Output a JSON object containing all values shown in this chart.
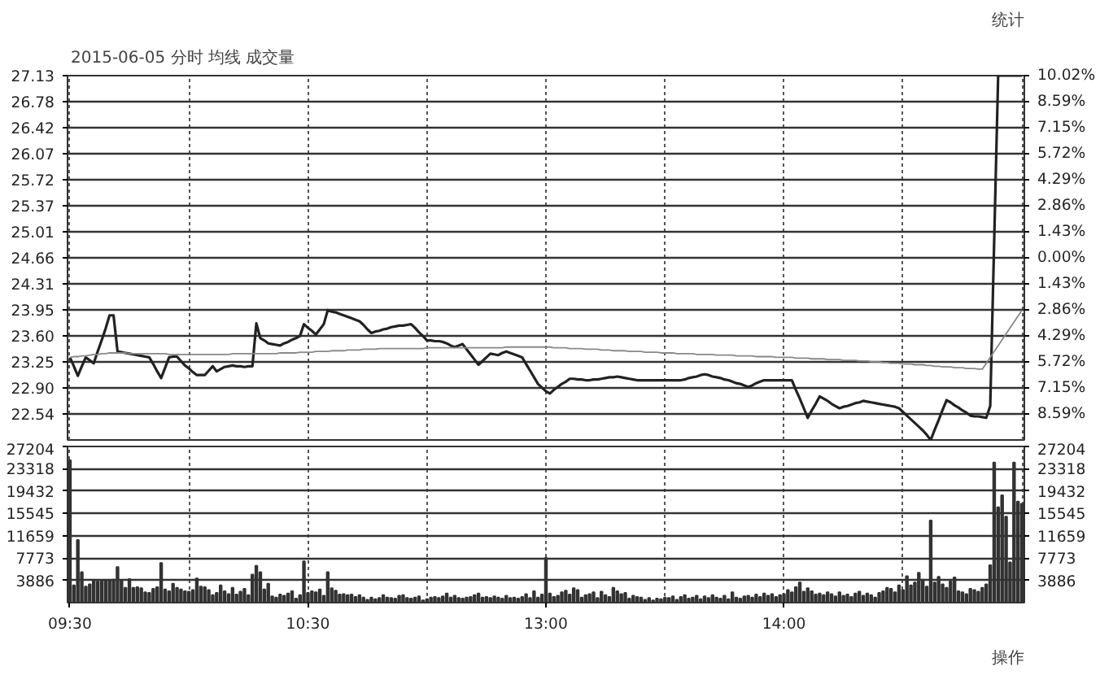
{
  "chart_data": [
    {
      "type": "line",
      "title": "2015-06-05 分时 均线 成交量",
      "annotations": [
        "统计"
      ],
      "categories": [
        null,
        null,
        null,
        null,
        null,
        null,
        null,
        null,
        null,
        null,
        null,
        null,
        null,
        null,
        null,
        null,
        null,
        null,
        null,
        null,
        null,
        null,
        null,
        null,
        null,
        null,
        null,
        null,
        null,
        null,
        null,
        null,
        null,
        null,
        null,
        null,
        null,
        null,
        null,
        null,
        null,
        null,
        null,
        null,
        null,
        null,
        null,
        null,
        null,
        null,
        null,
        null,
        null,
        null,
        null,
        null,
        null,
        null,
        null,
        null,
        null,
        null,
        null,
        null,
        null,
        null,
        null,
        null,
        null,
        null,
        null,
        null,
        null,
        null,
        null,
        null,
        null,
        null,
        null,
        null,
        null,
        null,
        null,
        null,
        null,
        null,
        null,
        null,
        null,
        null,
        null,
        null,
        null,
        null,
        null,
        null,
        null,
        null,
        null,
        null,
        null,
        null,
        null,
        null,
        null,
        null,
        null,
        null,
        null,
        null,
        null,
        null,
        null,
        null,
        null,
        null,
        null,
        null,
        null,
        null,
        null,
        null,
        null,
        null,
        null,
        null,
        null,
        null,
        null,
        null,
        null,
        null,
        null,
        null,
        null,
        null,
        null,
        null,
        null,
        null,
        null,
        null,
        null,
        null,
        null,
        null,
        null,
        null,
        null,
        null,
        null,
        null,
        null,
        null,
        null,
        null,
        null,
        null,
        null,
        null,
        null,
        null,
        null,
        null,
        null,
        null,
        null,
        null,
        null,
        null,
        null,
        null,
        null,
        null,
        null,
        null,
        null,
        null,
        null,
        null,
        null,
        null,
        null,
        null,
        null,
        null,
        null,
        null,
        null,
        null,
        null,
        null,
        null,
        null,
        null,
        null,
        null,
        null,
        null,
        null,
        null,
        null,
        null,
        null,
        null,
        null,
        null,
        null,
        null,
        null,
        null,
        null,
        null,
        null,
        null,
        null,
        null,
        null,
        null,
        null,
        null,
        null,
        null,
        null,
        null,
        null,
        null,
        null,
        null,
        null,
        null,
        null,
        null,
        null,
        null,
        null,
        null,
        null,
        null,
        null,
        null
      ],
      "ylim": [
        22.19,
        27.13
      ],
      "yticks": [
        27.13,
        26.78,
        26.42,
        26.07,
        25.72,
        25.37,
        25.01,
        24.66,
        24.31,
        23.95,
        {
          "value": 23.6,
          "label": "23.60"
        },
        23.25,
        {
          "value": 22.9,
          "label": "22.90"
        },
        22.54
      ],
      "y2lim": [
        -10.02,
        10.02
      ],
      "y2ticks": [
        {
          "value": 10.02,
          "label": "10.02%"
        },
        {
          "value": 8.59,
          "label": "8.59%"
        },
        {
          "value": 7.15,
          "label": "7.15%"
        },
        {
          "value": 5.72,
          "label": "5.72%"
        },
        {
          "value": 4.29,
          "label": "4.29%"
        },
        {
          "value": 2.86,
          "label": "2.86%"
        },
        {
          "value": 1.43,
          "label": "1.43%"
        },
        {
          "value": 0,
          "label": "0.00%"
        },
        {
          "value": -1.43,
          "label": "1.43%"
        },
        {
          "value": -2.86,
          "label": "2.86%"
        },
        {
          "value": -4.29,
          "label": "4.29%"
        },
        {
          "value": -5.72,
          "label": "5.72%"
        },
        {
          "value": -7.15,
          "label": "7.15%"
        },
        {
          "value": -8.59,
          "label": "8.59%"
        }
      ],
      "tick_labels": "y",
      "grid": true,
      "series": [
        {
          "color": "#222222",
          "values": [
            23.31,
            23.19,
            23.06,
            23.19,
            23.31,
            23.27,
            23.23,
            23.39,
            23.54,
            23.7,
            23.88,
            23.88,
            23.39,
            23.38,
            23.37,
            23.36,
            23.35,
            23.34,
            23.33,
            23.32,
            23.31,
            23.22,
            23.12,
            23.03,
            23.17,
            23.31,
            23.32,
            23.32,
            23.26,
            23.2,
            23.16,
            23.11,
            23.07,
            23.07,
            23.07,
            23.13,
            23.19,
            23.12,
            23.15,
            23.18,
            23.19,
            23.2,
            23.19,
            23.19,
            23.18,
            23.19,
            23.19,
            23.77,
            23.57,
            23.54,
            23.5,
            23.49,
            23.48,
            23.47,
            23.5,
            23.52,
            23.55,
            23.57,
            23.6,
            23.76,
            23.71,
            23.67,
            23.62,
            23.69,
            23.76,
            23.95,
            23.93,
            23.92,
            23.9,
            23.88,
            23.86,
            23.84,
            23.82,
            23.8,
            23.75,
            23.69,
            23.64,
            23.66,
            23.67,
            23.69,
            23.7,
            23.72,
            23.73,
            23.74,
            23.74,
            23.75,
            23.76,
            23.71,
            23.65,
            23.6,
            23.54,
            23.54,
            23.53,
            23.53,
            23.52,
            23.5,
            23.47,
            23.45,
            23.47,
            23.49,
            23.42,
            23.35,
            23.28,
            23.21,
            23.26,
            23.31,
            23.36,
            23.35,
            23.34,
            23.37,
            23.39,
            23.37,
            23.35,
            23.33,
            23.31,
            23.22,
            23.13,
            23.04,
            22.95,
            22.9,
            22.85,
            22.82,
            22.87,
            22.91,
            22.95,
            22.98,
            23.02,
            23.02,
            23.01,
            23.01,
            23.0,
            23.0,
            23.01,
            23.01,
            23.02,
            23.03,
            23.04,
            23.04,
            23.05,
            23.04,
            23.03,
            23.02,
            23.01,
            23.0,
            23.0,
            23.0,
            23.0,
            23.0,
            23.0,
            23.0,
            23.0,
            23.0,
            23.0,
            23.0,
            23.0,
            23.01,
            23.03,
            23.04,
            23.05,
            23.07,
            23.08,
            23.07,
            23.05,
            23.04,
            23.03,
            23.01,
            23.0,
            22.98,
            22.96,
            22.95,
            22.93,
            22.91,
            22.93,
            22.96,
            22.98,
            23.0,
            23.0,
            23.0,
            23.0,
            23.0,
            23.0,
            23.0,
            23.0,
            22.87,
            22.75,
            22.62,
            22.49,
            22.59,
            22.68,
            22.78,
            22.75,
            22.72,
            22.68,
            22.65,
            22.62,
            22.64,
            22.65,
            22.67,
            22.69,
            22.7,
            22.72,
            22.71,
            22.7,
            22.69,
            22.68,
            22.67,
            22.66,
            22.65,
            22.64,
            22.62,
            22.57,
            22.52,
            22.47,
            22.42,
            22.37,
            22.32,
            22.26,
            22.19,
            22.33,
            22.46,
            22.6,
            22.73,
            22.7,
            22.66,
            22.63,
            22.59,
            22.56,
            22.52,
            22.51,
            22.51,
            22.5,
            22.49,
            22.65,
            24.89,
            27.13,
            27.13,
            27.13,
            27.13,
            27.13,
            27.13,
            27.13
          ]
        },
        {
          "color": "#888888",
          "values": [
            23.31,
            23.32,
            23.32,
            23.33,
            23.33,
            23.34,
            23.35,
            23.35,
            23.36,
            23.36,
            23.37,
            23.37,
            23.37,
            23.37,
            23.37,
            23.36,
            23.36,
            23.36,
            23.36,
            23.36,
            23.36,
            23.36,
            23.36,
            23.36,
            23.36,
            23.35,
            23.35,
            23.35,
            23.35,
            23.35,
            23.35,
            23.35,
            23.35,
            23.35,
            23.35,
            23.35,
            23.35,
            23.35,
            23.35,
            23.35,
            23.35,
            23.36,
            23.36,
            23.36,
            23.36,
            23.36,
            23.36,
            23.36,
            23.36,
            23.36,
            23.36,
            23.36,
            23.36,
            23.37,
            23.37,
            23.37,
            23.37,
            23.37,
            23.38,
            23.38,
            23.38,
            23.38,
            23.39,
            23.39,
            23.39,
            23.39,
            23.4,
            23.4,
            23.4,
            23.4,
            23.41,
            23.41,
            23.41,
            23.41,
            23.42,
            23.42,
            23.42,
            23.42,
            23.43,
            23.43,
            23.43,
            23.43,
            23.43,
            23.43,
            23.43,
            23.43,
            23.43,
            23.43,
            23.43,
            23.43,
            23.44,
            23.44,
            23.44,
            23.44,
            23.44,
            23.44,
            23.44,
            23.44,
            23.44,
            23.44,
            23.44,
            23.44,
            23.44,
            23.44,
            23.44,
            23.44,
            23.44,
            23.44,
            23.44,
            23.44,
            23.45,
            23.45,
            23.45,
            23.45,
            23.45,
            23.45,
            23.45,
            23.45,
            23.45,
            23.45,
            23.45,
            23.45,
            23.44,
            23.44,
            23.44,
            23.44,
            23.43,
            23.43,
            23.43,
            23.43,
            23.42,
            23.42,
            23.42,
            23.42,
            23.41,
            23.41,
            23.41,
            23.4,
            23.4,
            23.4,
            23.4,
            23.39,
            23.39,
            23.39,
            23.39,
            23.38,
            23.38,
            23.38,
            23.38,
            23.37,
            23.37,
            23.37,
            23.37,
            23.36,
            23.36,
            23.36,
            23.36,
            23.36,
            23.35,
            23.35,
            23.35,
            23.35,
            23.35,
            23.34,
            23.34,
            23.34,
            23.34,
            23.34,
            23.33,
            23.33,
            23.33,
            23.33,
            23.33,
            23.32,
            23.32,
            23.32,
            23.32,
            23.32,
            23.31,
            23.31,
            23.31,
            23.31,
            23.31,
            23.3,
            23.3,
            23.3,
            23.3,
            23.29,
            23.29,
            23.29,
            23.29,
            23.28,
            23.28,
            23.28,
            23.28,
            23.27,
            23.27,
            23.27,
            23.27,
            23.26,
            23.26,
            23.26,
            23.25,
            23.25,
            23.25,
            23.24,
            23.24,
            23.23,
            23.23,
            23.23,
            23.22,
            23.22,
            23.22,
            23.21,
            23.21,
            23.21,
            23.2,
            23.2,
            23.19,
            23.19,
            23.18,
            23.18,
            23.18,
            23.17,
            23.17,
            23.17,
            23.16,
            23.16,
            23.16,
            23.15,
            23.15,
            23.23,
            23.31,
            23.39,
            23.47,
            23.55,
            23.63,
            23.71,
            23.79,
            23.87,
            23.95
          ]
        }
      ]
    },
    {
      "type": "bar",
      "annotations": [
        "操作"
      ],
      "categories": [
        "09:30",
        null,
        null,
        null,
        null,
        null,
        null,
        null,
        null,
        null,
        null,
        null,
        null,
        null,
        null,
        null,
        null,
        null,
        null,
        null,
        null,
        null,
        null,
        null,
        null,
        null,
        null,
        null,
        null,
        null,
        null,
        null,
        null,
        null,
        null,
        null,
        null,
        null,
        null,
        null,
        null,
        null,
        null,
        null,
        null,
        null,
        null,
        null,
        null,
        null,
        null,
        null,
        null,
        null,
        null,
        null,
        null,
        null,
        null,
        null,
        "10:30",
        null,
        null,
        null,
        null,
        null,
        null,
        null,
        null,
        null,
        null,
        null,
        null,
        null,
        null,
        null,
        null,
        null,
        null,
        null,
        null,
        null,
        null,
        null,
        null,
        null,
        null,
        null,
        null,
        null,
        null,
        null,
        null,
        null,
        null,
        null,
        null,
        null,
        null,
        null,
        null,
        null,
        null,
        null,
        null,
        null,
        null,
        null,
        null,
        null,
        null,
        null,
        null,
        null,
        null,
        null,
        null,
        null,
        null,
        null,
        "13:00",
        null,
        null,
        null,
        null,
        null,
        null,
        null,
        null,
        null,
        null,
        null,
        null,
        null,
        null,
        null,
        null,
        null,
        null,
        null,
        null,
        null,
        null,
        null,
        null,
        null,
        null,
        null,
        null,
        null,
        null,
        null,
        null,
        null,
        null,
        null,
        null,
        null,
        null,
        null,
        null,
        null,
        null,
        null,
        null,
        null,
        null,
        null,
        null,
        null,
        null,
        null,
        null,
        null,
        null,
        null,
        null,
        null,
        null,
        null,
        "14:00",
        null,
        null,
        null,
        null,
        null,
        null,
        null,
        null,
        null,
        null,
        null,
        null,
        null,
        null,
        null,
        null,
        null,
        null,
        null,
        null,
        null,
        null,
        null,
        null,
        null,
        null,
        null,
        null,
        null,
        null,
        null,
        null,
        null,
        null,
        null,
        null,
        null,
        null,
        null,
        null,
        null,
        null,
        null,
        null,
        null,
        null,
        null,
        null,
        null,
        null,
        null,
        null,
        null,
        null,
        null,
        null,
        null,
        null,
        null,
        null
      ],
      "ylim": [
        0,
        27204
      ],
      "yticks": [
        27204,
        23318,
        19432,
        15545,
        11659,
        7773,
        3886
      ],
      "y2lim": [
        0,
        27204
      ],
      "y2ticks": [
        27204,
        23318,
        19432,
        15545,
        11659,
        7773,
        3886
      ],
      "grid": true,
      "series": [
        {
          "color": "#333333",
          "values": [
            24800,
            3000,
            10900,
            5300,
            2800,
            3200,
            3800,
            3700,
            3800,
            3900,
            3900,
            4000,
            6200,
            3800,
            2600,
            4100,
            2600,
            2700,
            2500,
            1800,
            1700,
            2400,
            2700,
            6900,
            2300,
            2000,
            3300,
            2600,
            2300,
            2000,
            1900,
            2200,
            4200,
            2800,
            2700,
            2200,
            1300,
            1700,
            3000,
            2000,
            1500,
            2600,
            1400,
            1900,
            2400,
            1300,
            4900,
            6400,
            5300,
            2300,
            3300,
            1100,
            900,
            1400,
            1200,
            1600,
            2000,
            700,
            1300,
            7200,
            1700,
            2000,
            1800,
            2300,
            1200,
            5300,
            2500,
            2100,
            1400,
            1500,
            1300,
            1400,
            1000,
            1300,
            900,
            500,
            900,
            600,
            800,
            1300,
            900,
            800,
            700,
            1200,
            1300,
            800,
            700,
            900,
            1100,
            400,
            600,
            900,
            1000,
            800,
            1100,
            1600,
            900,
            1200,
            800,
            700,
            900,
            1000,
            1300,
            1600,
            900,
            1000,
            800,
            1100,
            900,
            700,
            1200,
            800,
            900,
            700,
            1000,
            1500,
            800,
            2000,
            900,
            1400,
            7800,
            1600,
            1000,
            1200,
            1800,
            2100,
            1400,
            2500,
            2200,
            900,
            1300,
            1500,
            1800,
            800,
            1900,
            1300,
            1000,
            2600,
            2000,
            1500,
            1700,
            700,
            1200,
            1000,
            900,
            500,
            800,
            400,
            700,
            600,
            900,
            800,
            1100,
            500,
            1000,
            1300,
            700,
            900,
            1200,
            600,
            1100,
            800,
            1300,
            900,
            700,
            1200,
            600,
            1800,
            900,
            700,
            1100,
            1200,
            900,
            1400,
            1000,
            1600,
            1200,
            1500,
            1000,
            1300,
            1500,
            2200,
            1800,
            2700,
            3500,
            1900,
            2500,
            2000,
            1400,
            1600,
            1300,
            1800,
            1500,
            1100,
            1800,
            1200,
            1400,
            1000,
            1600,
            1900,
            1200,
            1600,
            1300,
            900,
            1700,
            2000,
            2600,
            2400,
            1800,
            3000,
            2200,
            4600,
            3000,
            3500,
            5200,
            4000,
            2800,
            14300,
            3500,
            4500,
            3200,
            2600,
            3700,
            4400,
            2000,
            1800,
            1500,
            2400,
            2200,
            1900,
            2600,
            3200,
            6500,
            24400,
            16600,
            18700,
            15000,
            7000,
            24400,
            17600,
            17200
          ]
        }
      ]
    }
  ]
}
